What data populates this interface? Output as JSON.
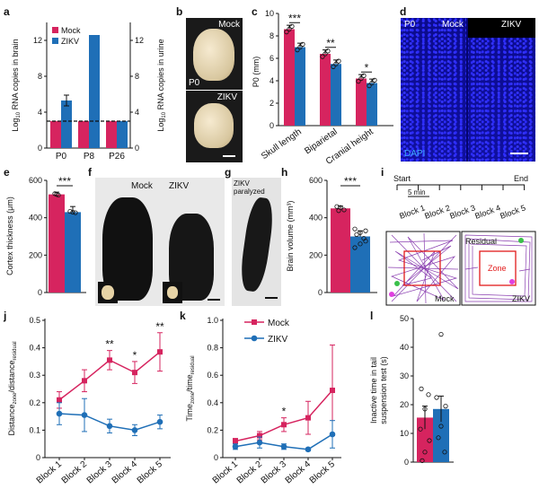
{
  "colors": {
    "mock": "#d6245f",
    "zikv": "#1f6fb7",
    "axis": "#111111",
    "dapi": "#1a1aff",
    "track": "#8a3fb0",
    "zone": "#e21b1b"
  },
  "panel_letters": {
    "a": "a",
    "b": "b",
    "c": "c",
    "d": "d",
    "e": "e",
    "f": "f",
    "g": "g",
    "h": "h",
    "i": "i",
    "j": "j",
    "k": "k",
    "l": "l"
  },
  "legend": {
    "mock": "Mock",
    "zikv": "ZIKV"
  },
  "panel_b": {
    "top_label": "Mock",
    "bottom_label": "ZIKV",
    "stage": "P0"
  },
  "panel_d": {
    "stage": "P0",
    "left": "Mock",
    "right": "ZIKV",
    "stain": "DAPI"
  },
  "panel_f": {
    "left": "Mock",
    "right": "ZIKV"
  },
  "panel_g": {
    "label": "ZIKV paralyzed"
  },
  "panel_i": {
    "start": "Start",
    "end": "End",
    "interval": "5 min",
    "blocks": [
      "Block 1",
      "Block 2",
      "Block 3",
      "Block 4",
      "Block 5"
    ],
    "residual": "Residual",
    "zone": "Zone",
    "mock": "Mock",
    "zikv": "ZIKV"
  },
  "chart_data": [
    {
      "panel": "a",
      "type": "bar",
      "categories": [
        "P0",
        "P8",
        "P26"
      ],
      "ylabel_left": "Log10 RNA copies in brain",
      "ylabel_right": "Log10 RNA copies in urine",
      "ylim": [
        0,
        14
      ],
      "yticks": [
        0,
        4,
        8,
        12
      ],
      "yticks_right": [
        0,
        4,
        8,
        12
      ],
      "baseline": 3,
      "series": [
        {
          "name": "Mock",
          "values": [
            3,
            3,
            3
          ]
        },
        {
          "name": "ZIKV",
          "values": [
            5.3,
            12.6,
            3
          ]
        }
      ],
      "zikv_err": [
        0.6,
        0,
        0
      ]
    },
    {
      "panel": "c",
      "type": "bar",
      "categories": [
        "Skull length",
        "Biparietal",
        "Cranial  height"
      ],
      "ylabel": "P0 (mm)",
      "ylim": [
        0,
        10
      ],
      "yticks": [
        0,
        2,
        4,
        6,
        8,
        10
      ],
      "series": [
        {
          "name": "Mock",
          "values": [
            8.6,
            6.4,
            4.2
          ]
        },
        {
          "name": "ZIKV",
          "values": [
            7.0,
            5.5,
            3.8
          ]
        }
      ],
      "significance": [
        "***",
        "**",
        "*"
      ]
    },
    {
      "panel": "e",
      "type": "bar",
      "ylabel": "Cortex thickness (μm)",
      "ylim": [
        0,
        600
      ],
      "yticks": [
        0,
        200,
        400,
        600
      ],
      "series": [
        {
          "name": "Mock",
          "values": [
            525
          ]
        },
        {
          "name": "ZIKV",
          "values": [
            430
          ]
        }
      ],
      "significance": "***"
    },
    {
      "panel": "h",
      "type": "bar",
      "ylabel": "Brain volume (mm³)",
      "ylim": [
        0,
        600
      ],
      "yticks": [
        0,
        200,
        400,
        600
      ],
      "series": [
        {
          "name": "Mock",
          "values": [
            450
          ]
        },
        {
          "name": "ZIKV",
          "values": [
            300
          ]
        }
      ],
      "significance": "***"
    },
    {
      "panel": "j",
      "type": "line",
      "categories": [
        "Block 1",
        "Block 2",
        "Block 3",
        "Block 4",
        "Block 5"
      ],
      "ylabel": "Distance_zone/distance_residual",
      "ylim": [
        0,
        0.5
      ],
      "yticks": [
        0,
        0.1,
        0.2,
        0.3,
        0.4,
        0.5
      ],
      "series": [
        {
          "name": "Mock",
          "values": [
            0.21,
            0.28,
            0.355,
            0.31,
            0.385
          ],
          "err": [
            0.03,
            0.04,
            0.035,
            0.04,
            0.07
          ]
        },
        {
          "name": "ZIKV",
          "values": [
            0.16,
            0.155,
            0.115,
            0.1,
            0.13
          ],
          "err": [
            0.04,
            0.06,
            0.025,
            0.02,
            0.025
          ]
        }
      ],
      "significance": [
        "",
        "",
        "**",
        "*",
        "**"
      ]
    },
    {
      "panel": "k",
      "type": "line",
      "categories": [
        "Block 1",
        "Block 2",
        "Block 3",
        "Block 4",
        "Block 5"
      ],
      "ylabel": "Time_zone/time_residual",
      "ylim": [
        0,
        1.0
      ],
      "yticks": [
        0,
        0.2,
        0.4,
        0.6,
        0.8,
        1.0
      ],
      "series": [
        {
          "name": "Mock",
          "values": [
            0.12,
            0.16,
            0.24,
            0.29,
            0.49
          ],
          "err": [
            0.02,
            0.03,
            0.05,
            0.12,
            0.33
          ]
        },
        {
          "name": "ZIKV",
          "values": [
            0.08,
            0.11,
            0.08,
            0.06,
            0.17
          ],
          "err": [
            0.02,
            0.04,
            0.02,
            0.01,
            0.1
          ]
        }
      ],
      "significance": [
        "",
        "",
        "*",
        "",
        ""
      ]
    },
    {
      "panel": "l",
      "type": "bar",
      "ylabel": "Inactive time in tail suspension test (s)",
      "ylim": [
        0,
        50
      ],
      "yticks": [
        0,
        10,
        20,
        30,
        40,
        50
      ],
      "series": [
        {
          "name": "Mock",
          "values": [
            15.5
          ],
          "err": 4
        },
        {
          "name": "ZIKV",
          "values": [
            18.5
          ],
          "err": 4.5
        }
      ]
    }
  ]
}
